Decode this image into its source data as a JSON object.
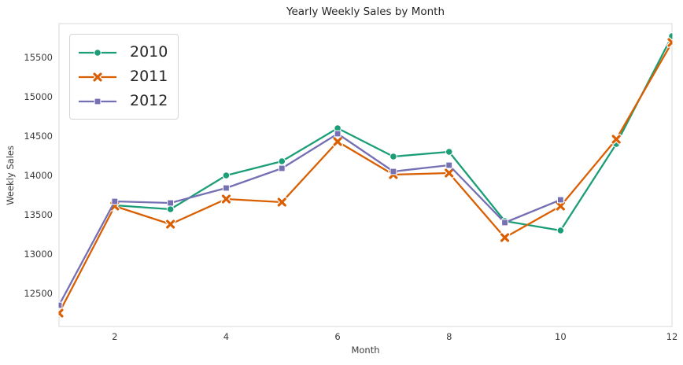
{
  "figure": {
    "title": "Yearly Weekly Sales by Month",
    "xlabel": "Month",
    "ylabel": "Weekly Sales"
  },
  "colors": {
    "series_2010": "#1b9e77",
    "series_2011": "#d95f02",
    "series_2012": "#7570b3",
    "spine": "#d8d8d8",
    "tick_text": "#3b3b3b",
    "title_text": "#262626",
    "background": "#ffffff"
  },
  "chart_data": {
    "type": "line",
    "title": "Yearly Weekly Sales by Month",
    "xlabel": "Month",
    "ylabel": "Weekly Sales",
    "x": [
      1,
      2,
      3,
      4,
      5,
      6,
      7,
      8,
      9,
      10,
      11,
      12
    ],
    "xticks": [
      2,
      4,
      6,
      8,
      10,
      12
    ],
    "yticks": [
      12500,
      13000,
      13500,
      14000,
      14500,
      15000,
      15500
    ],
    "xlim": [
      1,
      12
    ],
    "ylim": [
      12080,
      15930
    ],
    "grid": false,
    "legend_position": "upper-left",
    "series": [
      {
        "name": "2010",
        "color": "#1b9e77",
        "marker": "circle",
        "values": [
          null,
          13620,
          13570,
          14000,
          14180,
          14600,
          14240,
          14300,
          13420,
          13300,
          14400,
          15770
        ]
      },
      {
        "name": "2011",
        "color": "#d95f02",
        "marker": "x",
        "values": [
          12250,
          13610,
          13380,
          13700,
          13660,
          14430,
          14010,
          14030,
          13210,
          13610,
          14460,
          15690
        ]
      },
      {
        "name": "2012",
        "color": "#7570b3",
        "marker": "square",
        "values": [
          12350,
          13670,
          13650,
          13840,
          14090,
          14530,
          14050,
          14130,
          13400,
          13690,
          null,
          null
        ]
      }
    ]
  }
}
